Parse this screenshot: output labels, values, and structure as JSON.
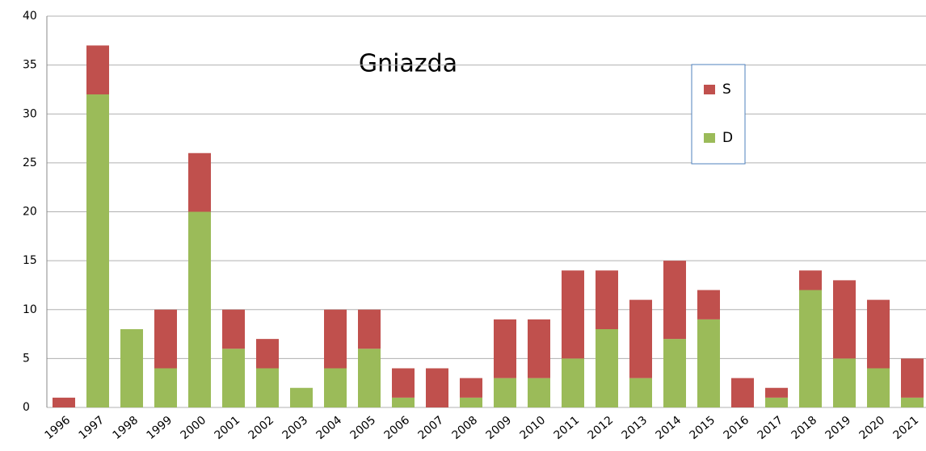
{
  "chart_data": {
    "type": "stacked_bar",
    "title": "Gniazda",
    "categories": [
      "1996",
      "1997",
      "1998",
      "1999",
      "2000",
      "2001",
      "2002",
      "2003",
      "2004",
      "2005",
      "2006",
      "2007",
      "2008",
      "2009",
      "2010",
      "2011",
      "2012",
      "2013",
      "2014",
      "2015",
      "2016",
      "2017",
      "2018",
      "2019",
      "2020",
      "2021"
    ],
    "series": [
      {
        "name": "D",
        "color": "#9bbb59",
        "values": [
          0,
          32,
          8,
          4,
          20,
          6,
          4,
          2,
          4,
          6,
          1,
          0,
          1,
          3,
          3,
          5,
          8,
          3,
          7,
          9,
          0,
          1,
          12,
          5,
          4,
          1
        ]
      },
      {
        "name": "S",
        "color": "#c0504d",
        "values": [
          1,
          5,
          0,
          6,
          6,
          4,
          3,
          0,
          6,
          4,
          3,
          4,
          2,
          6,
          6,
          9,
          6,
          8,
          8,
          3,
          3,
          1,
          2,
          8,
          7,
          4
        ]
      }
    ],
    "ylim": [
      0,
      40
    ],
    "yticks": [
      0,
      5,
      10,
      15,
      20,
      25,
      30,
      35,
      40
    ],
    "grid": true,
    "legend": "top-right"
  }
}
